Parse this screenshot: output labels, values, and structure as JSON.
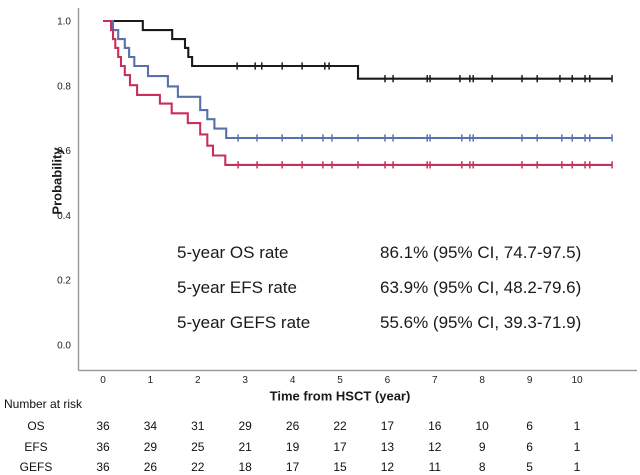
{
  "chart_data": {
    "type": "line",
    "subtype": "kaplan-meier-step",
    "title": "",
    "xlabel": "Time from HSCT (year)",
    "ylabel": "Probability",
    "xticks": [
      0,
      1,
      2,
      3,
      4,
      5,
      6,
      7,
      8,
      9,
      10
    ],
    "yticks": [
      0.0,
      0.2,
      0.4,
      0.6,
      0.8,
      1.0
    ],
    "xlim": [
      0,
      10.75
    ],
    "ylim": [
      0.0,
      1.0
    ],
    "grid": false,
    "axis_color": "#9a9a9a",
    "tick_label_color": "#222222",
    "series": [
      {
        "name": "OS",
        "color": "#1a1a1a",
        "steps": [
          [
            0,
            1.0
          ],
          [
            0.84,
            0.972
          ],
          [
            1.46,
            0.944
          ],
          [
            1.73,
            0.917
          ],
          [
            1.8,
            0.889
          ],
          [
            1.88,
            0.861
          ],
          [
            5.38,
            0.822
          ]
        ],
        "end": 10.74,
        "censors": [
          2.83,
          3.21,
          3.35,
          3.78,
          4.2,
          4.68,
          4.77,
          5.95,
          6.12,
          6.84,
          6.9,
          7.53,
          7.74,
          7.81,
          8.21,
          8.84,
          9.16,
          9.64,
          9.9,
          10.17,
          10.27,
          10.74
        ]
      },
      {
        "name": "EFS",
        "color": "#5671ae",
        "steps": [
          [
            0,
            1.0
          ],
          [
            0.21,
            0.972
          ],
          [
            0.32,
            0.944
          ],
          [
            0.46,
            0.917
          ],
          [
            0.55,
            0.889
          ],
          [
            0.66,
            0.861
          ],
          [
            0.95,
            0.83
          ],
          [
            1.37,
            0.798
          ],
          [
            1.58,
            0.766
          ],
          [
            2.05,
            0.725
          ],
          [
            2.2,
            0.697
          ],
          [
            2.35,
            0.668
          ],
          [
            2.6,
            0.639
          ]
        ],
        "end": 10.74,
        "censors": [
          2.85,
          3.25,
          3.78,
          4.2,
          4.64,
          4.83,
          5.38,
          5.95,
          6.12,
          6.84,
          6.9,
          7.57,
          7.74,
          7.81,
          8.84,
          9.16,
          9.68,
          9.9,
          10.17,
          10.27,
          10.74
        ]
      },
      {
        "name": "GEFS",
        "color": "#c8305a",
        "steps": [
          [
            0,
            1.0
          ],
          [
            0.17,
            0.972
          ],
          [
            0.21,
            0.944
          ],
          [
            0.26,
            0.917
          ],
          [
            0.32,
            0.889
          ],
          [
            0.38,
            0.861
          ],
          [
            0.46,
            0.833
          ],
          [
            0.57,
            0.802
          ],
          [
            0.72,
            0.772
          ],
          [
            1.2,
            0.745
          ],
          [
            1.45,
            0.715
          ],
          [
            1.79,
            0.685
          ],
          [
            2.05,
            0.65
          ],
          [
            2.2,
            0.615
          ],
          [
            2.32,
            0.585
          ],
          [
            2.58,
            0.556
          ]
        ],
        "end": 10.74,
        "censors": [
          2.85,
          3.25,
          3.78,
          4.2,
          4.64,
          4.83,
          5.38,
          5.95,
          6.12,
          6.84,
          6.9,
          7.57,
          7.74,
          7.81,
          8.84,
          9.16,
          9.68,
          9.9,
          10.17,
          10.27,
          10.74
        ]
      }
    ],
    "legend": {
      "position": "inside-lower-left",
      "rows": [
        {
          "label": "5-year OS rate",
          "value": "86.1% (95% CI, 74.7-97.5)",
          "color": "#1a1a1a"
        },
        {
          "label": "5-year EFS rate",
          "value": "63.9% (95% CI, 48.2-79.6)",
          "color": "#5671ae"
        },
        {
          "label": "5-year GEFS rate",
          "value": "55.6% (95% CI, 39.3-71.9)",
          "color": "#c8305a"
        }
      ]
    },
    "risk_table": {
      "title": "Number at risk",
      "time_points": [
        0,
        1,
        2,
        3,
        4,
        5,
        6,
        7,
        8,
        9,
        10
      ],
      "rows": [
        {
          "label": "OS",
          "values": [
            36,
            34,
            31,
            29,
            26,
            22,
            17,
            16,
            10,
            6,
            1
          ]
        },
        {
          "label": "EFS",
          "values": [
            36,
            29,
            25,
            21,
            19,
            17,
            13,
            12,
            9,
            6,
            1
          ]
        },
        {
          "label": "GEFS",
          "values": [
            36,
            26,
            22,
            18,
            17,
            15,
            12,
            11,
            8,
            5,
            1
          ]
        }
      ]
    }
  }
}
